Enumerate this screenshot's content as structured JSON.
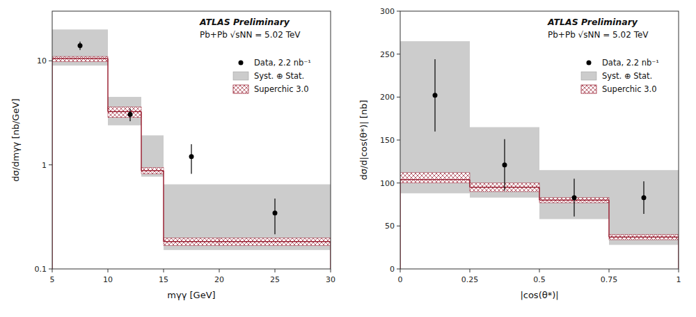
{
  "chart_data": [
    {
      "type": "histogram",
      "xlabel": "mγγ [GeV]",
      "ylabel": "dσ/dmγγ [nb/GeV]",
      "annotations": [
        "ATLAS Preliminary",
        "Pb+Pb √sNN = 5.02 TeV"
      ],
      "bins": [
        5,
        10,
        13,
        15,
        20,
        30
      ],
      "series": [
        {
          "name": "Data, 2.2 nb⁻¹",
          "type": "scatter",
          "marker": "circle",
          "color": "black",
          "x": [
            7.5,
            12.0,
            17.5,
            25.0
          ],
          "values": [
            14.0,
            3.05,
            1.2,
            0.345
          ],
          "errors_lo": [
            1.3,
            0.42,
            0.38,
            0.13
          ],
          "errors_hi": [
            1.3,
            0.42,
            0.38,
            0.13
          ]
        },
        {
          "name": "Syst. ⊕ Stat.",
          "type": "band",
          "color": "#CCCCCC",
          "lo": [
            9.0,
            2.4,
            0.77,
            0.152,
            0.152
          ],
          "hi": [
            20.0,
            4.5,
            1.92,
            0.65,
            0.65
          ]
        },
        {
          "name": "Superchic 3.0",
          "type": "step",
          "color": "#9B2335",
          "values": [
            10.5,
            3.25,
            0.88,
            0.183,
            0.183
          ],
          "lo": [
            9.8,
            2.85,
            0.82,
            0.168,
            0.168
          ],
          "hi": [
            11.0,
            3.6,
            0.94,
            0.198,
            0.198
          ]
        }
      ],
      "xlim": [
        5,
        30
      ],
      "ylim": [
        0.1,
        30
      ],
      "xticks": [
        5,
        10,
        15,
        20,
        25,
        30
      ],
      "yticks": [
        0.1,
        1,
        10
      ],
      "log": "y",
      "grid": false,
      "legend": "upper right"
    },
    {
      "type": "histogram",
      "xlabel": "|cos(θ*)|",
      "ylabel": "dσ/d|cos(θ*)| [nb]",
      "annotations": [
        "ATLAS Preliminary",
        "Pb+Pb √sNN = 5.02 TeV"
      ],
      "bins": [
        0,
        0.25,
        0.5,
        0.75,
        1
      ],
      "series": [
        {
          "name": "Data, 2.2 nb⁻¹",
          "type": "scatter",
          "marker": "circle",
          "color": "black",
          "x": [
            0.125,
            0.375,
            0.625,
            0.875
          ],
          "values": [
            202,
            121,
            83,
            83
          ],
          "errors_lo": [
            42,
            30,
            22,
            19
          ],
          "errors_hi": [
            42,
            30,
            22,
            19
          ]
        },
        {
          "name": "Syst. ⊕ Stat.",
          "type": "band",
          "color": "#CCCCCC",
          "lo": [
            88,
            83,
            58,
            28
          ],
          "hi": [
            265,
            165,
            115,
            115
          ]
        },
        {
          "name": "Superchic 3.0",
          "type": "step",
          "color": "#9B2335",
          "values": [
            104,
            95,
            80,
            37
          ],
          "lo": [
            100,
            90,
            77,
            34
          ],
          "hi": [
            112,
            100,
            83,
            40
          ]
        }
      ],
      "xlim": [
        0,
        1
      ],
      "ylim": [
        0,
        300
      ],
      "xticks": [
        0,
        0.25,
        0.5,
        0.75,
        1
      ],
      "yticks": [
        0,
        50,
        100,
        150,
        200,
        250,
        300
      ],
      "grid": false,
      "legend": "upper right"
    }
  ]
}
